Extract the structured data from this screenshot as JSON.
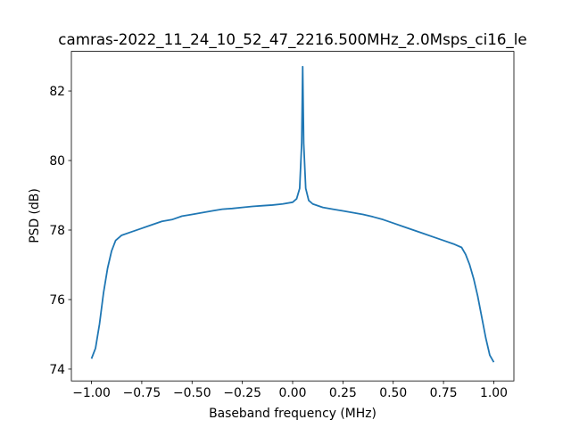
{
  "chart_data": {
    "type": "line",
    "title": "camras-2022_11_24_10_52_47_2216.500MHz_2.0Msps_ci16_le",
    "xlabel": "Baseband frequency (MHz)",
    "ylabel": "PSD (dB)",
    "x": [
      -1.0,
      -0.98,
      -0.96,
      -0.94,
      -0.92,
      -0.9,
      -0.88,
      -0.85,
      -0.8,
      -0.75,
      -0.7,
      -0.65,
      -0.6,
      -0.55,
      -0.5,
      -0.45,
      -0.4,
      -0.35,
      -0.3,
      -0.25,
      -0.2,
      -0.15,
      -0.1,
      -0.05,
      0.0,
      0.02,
      0.035,
      0.045,
      0.05,
      0.055,
      0.065,
      0.08,
      0.1,
      0.15,
      0.2,
      0.25,
      0.3,
      0.35,
      0.4,
      0.45,
      0.5,
      0.55,
      0.6,
      0.65,
      0.7,
      0.75,
      0.8,
      0.84,
      0.86,
      0.88,
      0.9,
      0.92,
      0.94,
      0.96,
      0.98,
      1.0
    ],
    "series": [
      {
        "name": "PSD",
        "color": "#1f77b4",
        "values": [
          74.3,
          74.6,
          75.3,
          76.2,
          76.9,
          77.4,
          77.7,
          77.85,
          77.95,
          78.05,
          78.15,
          78.25,
          78.3,
          78.4,
          78.45,
          78.5,
          78.55,
          78.6,
          78.62,
          78.65,
          78.68,
          78.7,
          78.72,
          78.75,
          78.8,
          78.9,
          79.2,
          80.5,
          82.7,
          80.5,
          79.2,
          78.85,
          78.75,
          78.65,
          78.6,
          78.55,
          78.5,
          78.45,
          78.38,
          78.3,
          78.2,
          78.1,
          78.0,
          77.9,
          77.8,
          77.7,
          77.6,
          77.5,
          77.3,
          77.0,
          76.6,
          76.1,
          75.5,
          74.9,
          74.4,
          74.2
        ]
      }
    ],
    "xlim": [
      -1.1,
      1.1
    ],
    "ylim": [
      73.66,
      83.14
    ],
    "xticks": [
      {
        "value": -1,
        "label": "−1.00"
      },
      {
        "value": -0.75,
        "label": "−0.75"
      },
      {
        "value": -0.5,
        "label": "−0.50"
      },
      {
        "value": -0.25,
        "label": "−0.25"
      },
      {
        "value": 0,
        "label": "0.00"
      },
      {
        "value": 0.25,
        "label": "0.25"
      },
      {
        "value": 0.5,
        "label": "0.50"
      },
      {
        "value": 0.75,
        "label": "0.75"
      },
      {
        "value": 1,
        "label": "1.00"
      }
    ],
    "yticks": [
      74,
      76,
      78,
      80,
      82
    ],
    "grid": false
  }
}
